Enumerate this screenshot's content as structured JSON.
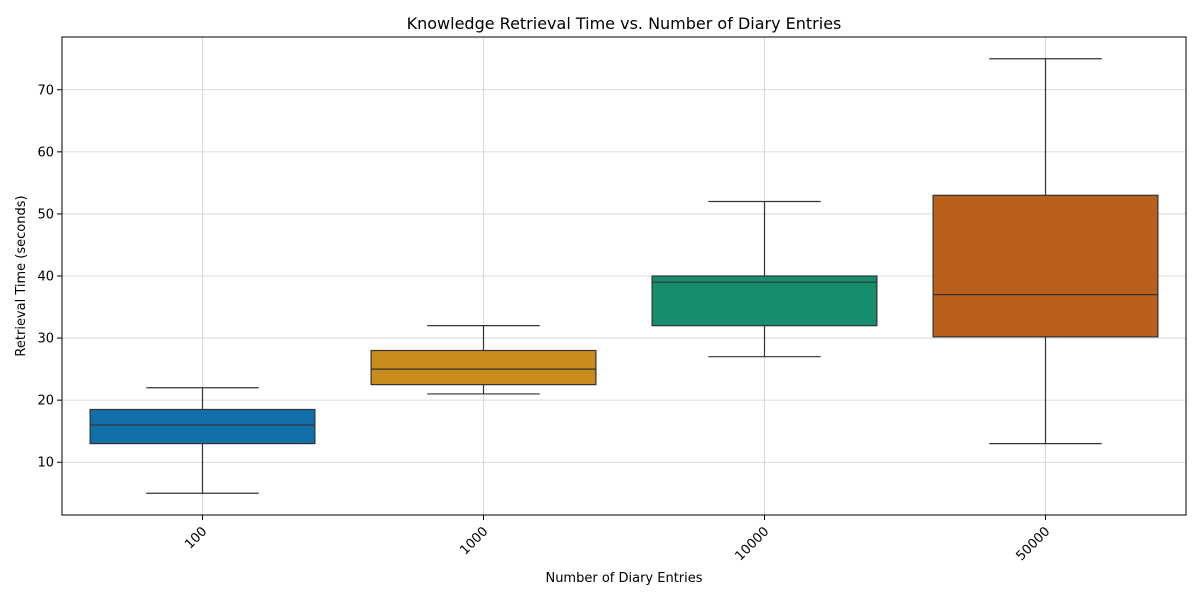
{
  "chart_data": {
    "type": "box",
    "title": "Knowledge Retrieval Time vs. Number of Diary Entries",
    "xlabel": "Number of Diary Entries",
    "ylabel": "Retrieval Time (seconds)",
    "categories": [
      "100",
      "1000",
      "10000",
      "50000"
    ],
    "colors": [
      "#1170aa",
      "#c98a1e",
      "#168e6d",
      "#b9601d"
    ],
    "boxes": [
      {
        "category": "100",
        "whisker_low": 5,
        "q1": 13,
        "median": 16,
        "q3": 18.5,
        "whisker_high": 22
      },
      {
        "category": "1000",
        "whisker_low": 21,
        "q1": 22.5,
        "median": 25,
        "q3": 28,
        "whisker_high": 32
      },
      {
        "category": "10000",
        "whisker_low": 27,
        "q1": 32,
        "median": 39,
        "q3": 40,
        "whisker_high": 52
      },
      {
        "category": "50000",
        "whisker_low": 13,
        "q1": 30.2,
        "median": 37,
        "q3": 53,
        "whisker_high": 75
      }
    ],
    "ylim": [
      1.5,
      78.5
    ],
    "yticks": [
      10,
      20,
      30,
      40,
      50,
      60,
      70
    ],
    "grid": true,
    "xtick_rotation": -45
  }
}
